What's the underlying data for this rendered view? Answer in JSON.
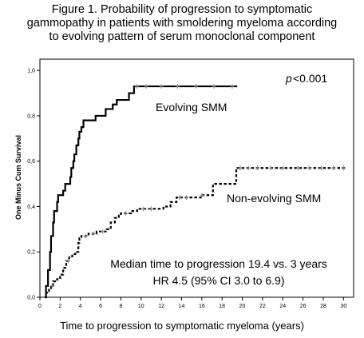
{
  "figure": {
    "title_lines": [
      "Figure 1. Probability of progression to symptomatic",
      "gammopathy in patients with smoldering myeloma according",
      "to evolving pattern of serum monoclonal component"
    ]
  },
  "chart_data": {
    "type": "line",
    "title": "Figure 1. Probability of progression to symptomatic gammopathy in patients with smoldering myeloma according to evolving pattern of serum monoclonal component",
    "xlabel": "Time to progression to symptomatic myeloma (years)",
    "ylabel": "One Minus Cum Survival",
    "xlim": [
      0,
      31
    ],
    "ylim": [
      0,
      1.05
    ],
    "x_ticks": [
      0,
      2,
      4,
      6,
      8,
      10,
      12,
      14,
      16,
      18,
      20,
      22,
      24,
      26,
      28,
      30
    ],
    "y_ticks": [
      0.0,
      0.2,
      0.4,
      0.6,
      0.8,
      1.0
    ],
    "y_tick_labels": [
      "0,0",
      "0,2",
      "0,4",
      "0,6",
      "0,8",
      "1,0"
    ],
    "grid": false,
    "series": [
      {
        "name": "Evolving SMM",
        "style": "solid",
        "step": true,
        "points": [
          [
            0.5,
            0.0
          ],
          [
            0.6,
            0.05
          ],
          [
            0.8,
            0.12
          ],
          [
            1.0,
            0.2
          ],
          [
            1.1,
            0.27
          ],
          [
            1.3,
            0.33
          ],
          [
            1.4,
            0.38
          ],
          [
            1.7,
            0.42
          ],
          [
            1.8,
            0.45
          ],
          [
            2.2,
            0.45
          ],
          [
            2.3,
            0.47
          ],
          [
            2.5,
            0.5
          ],
          [
            3.0,
            0.53
          ],
          [
            3.1,
            0.57
          ],
          [
            3.3,
            0.6
          ],
          [
            3.4,
            0.63
          ],
          [
            3.6,
            0.67
          ],
          [
            3.8,
            0.7
          ],
          [
            3.9,
            0.73
          ],
          [
            4.1,
            0.75
          ],
          [
            4.3,
            0.78
          ],
          [
            5.3,
            0.78
          ],
          [
            5.5,
            0.8
          ],
          [
            6.3,
            0.8
          ],
          [
            6.5,
            0.83
          ],
          [
            7.0,
            0.83
          ],
          [
            7.2,
            0.85
          ],
          [
            7.6,
            0.87
          ],
          [
            8.6,
            0.87
          ],
          [
            8.8,
            0.9
          ],
          [
            9.2,
            0.9
          ],
          [
            9.3,
            0.93
          ],
          [
            19.5,
            0.93
          ]
        ],
        "censor_x": [
          9.6,
          10.5,
          12.0,
          13.6,
          15.4,
          17.2,
          19.0
        ]
      },
      {
        "name": "Non-evolving SMM",
        "style": "dashed",
        "step": true,
        "points": [
          [
            0.5,
            0.0
          ],
          [
            0.6,
            0.02
          ],
          [
            0.9,
            0.04
          ],
          [
            1.1,
            0.05
          ],
          [
            1.3,
            0.07
          ],
          [
            1.7,
            0.08
          ],
          [
            2.0,
            0.1
          ],
          [
            2.3,
            0.13
          ],
          [
            2.6,
            0.16
          ],
          [
            2.9,
            0.18
          ],
          [
            3.2,
            0.19
          ],
          [
            3.5,
            0.2
          ],
          [
            3.8,
            0.24
          ],
          [
            3.9,
            0.26
          ],
          [
            4.1,
            0.27
          ],
          [
            4.8,
            0.28
          ],
          [
            5.6,
            0.29
          ],
          [
            6.6,
            0.3
          ],
          [
            7.0,
            0.33
          ],
          [
            7.4,
            0.35
          ],
          [
            7.8,
            0.36
          ],
          [
            8.0,
            0.37
          ],
          [
            9.0,
            0.38
          ],
          [
            9.6,
            0.39
          ],
          [
            11.8,
            0.39
          ],
          [
            12.2,
            0.4
          ],
          [
            12.9,
            0.42
          ],
          [
            13.5,
            0.44
          ],
          [
            15.4,
            0.44
          ],
          [
            15.9,
            0.45
          ],
          [
            16.9,
            0.45
          ],
          [
            17.1,
            0.5
          ],
          [
            18.9,
            0.5
          ],
          [
            19.4,
            0.57
          ],
          [
            30.2,
            0.57
          ]
        ],
        "censor_x": [
          1.2,
          2.8,
          4.5,
          5.3,
          6.2,
          8.5,
          10.2,
          11.0,
          13.8,
          14.5,
          16.0,
          19.8,
          20.6,
          21.5,
          22.8,
          24.0,
          25.5,
          26.6,
          27.8,
          29.0,
          30.0
        ]
      }
    ],
    "annotations": {
      "p_value_italic": "p",
      "p_value_rest": "<0.001",
      "evolving_label": "Evolving SMM",
      "nonevolving_label": "Non-evolving SMM",
      "median_line": "Median time to progression 19.4 vs. 3 years",
      "hr_line": "HR 4.5 (95% CI 3.0 to 6.9)"
    }
  }
}
